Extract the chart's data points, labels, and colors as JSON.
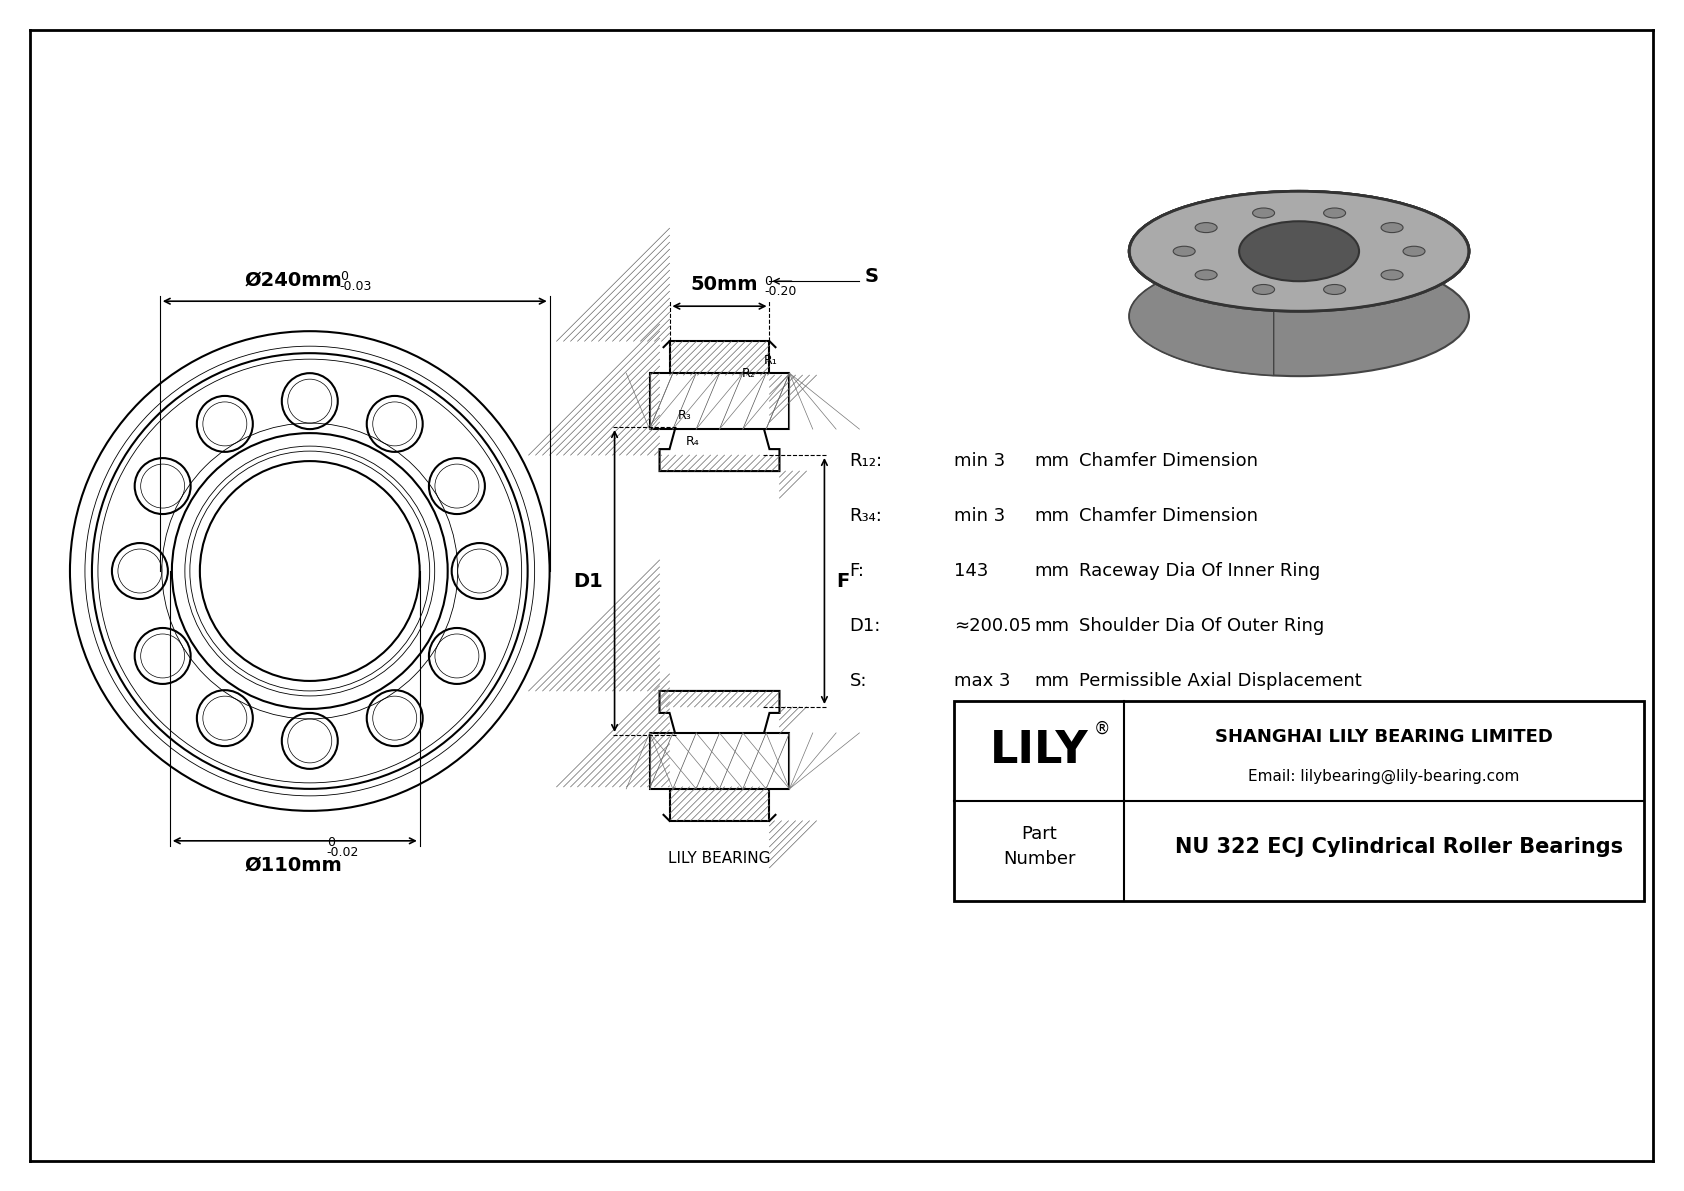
{
  "bg_color": "#ffffff",
  "line_color": "#000000",
  "border_color": "#000000",
  "title": "NU 322 ECJ Cylindrical Roller Bearings",
  "company": "SHANGHAI LILY BEARING LIMITED",
  "email": "Email: lilybearing@lily-bearing.com",
  "brand": "LILY",
  "od_label": "Ø240mm",
  "od_tol_top": "0",
  "od_tol_bot": "-0.03",
  "id_label": "Ø110mm",
  "id_tol_top": "0",
  "id_tol_bot": "-0.02",
  "width_label": "50mm",
  "width_tol_top": "0",
  "width_tol_bot": "-0.20",
  "params": [
    {
      "symbol": "R₁₂:",
      "value": "min 3",
      "unit": "mm",
      "desc": "Chamfer Dimension"
    },
    {
      "symbol": "R₃₄:",
      "value": "min 3",
      "unit": "mm",
      "desc": "Chamfer Dimension"
    },
    {
      "symbol": "F:",
      "value": "143",
      "unit": "mm",
      "desc": "Raceway Dia Of Inner Ring"
    },
    {
      "symbol": "D1:",
      "value": "≈200.05",
      "unit": "mm",
      "desc": "Shoulder Dia Of Outer Ring"
    },
    {
      "symbol": "S:",
      "value": "max 3",
      "unit": "mm",
      "desc": "Permissible Axial Displacement"
    }
  ],
  "lily_bearing_label": "LILY BEARING"
}
